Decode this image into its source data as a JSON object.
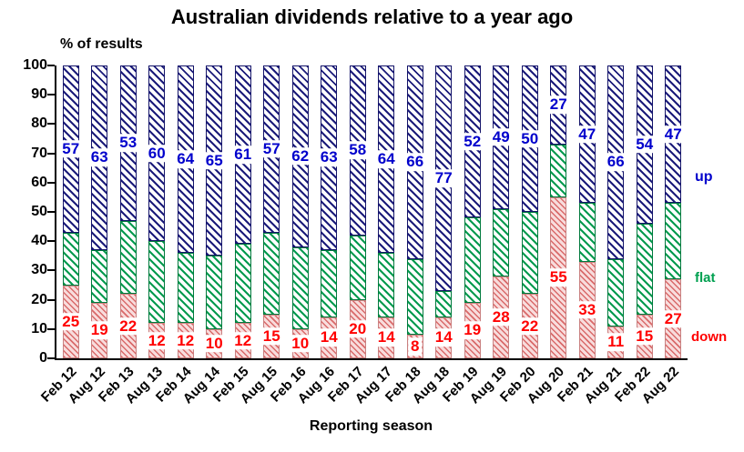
{
  "title": "Australian dividends relative to a year ago",
  "y_axis_label": "% of results",
  "x_axis_label": "Reporting season",
  "legend": {
    "up_label": "up",
    "flat_label": "flat",
    "down_label": "down"
  },
  "colors": {
    "up_text": "#0000cc",
    "flat_text": "#00a050",
    "down_text": "#ff0000",
    "up_hatch": "#1b1b7a",
    "flat_hatch": "#009a4e",
    "down_hatch": "#d96a6a",
    "axis": "#000000"
  },
  "chart_data": {
    "type": "bar",
    "stacked": true,
    "title": "Australian dividends relative to a year ago",
    "xlabel": "Reporting season",
    "ylabel": "% of results",
    "ylim": [
      0,
      100
    ],
    "yticks": [
      0,
      10,
      20,
      30,
      40,
      50,
      60,
      70,
      80,
      90,
      100
    ],
    "grid": false,
    "legend_position": "right",
    "categories": [
      "Feb 12",
      "Aug 12",
      "Feb 13",
      "Aug 13",
      "Feb 14",
      "Aug 14",
      "Feb 15",
      "Aug 15",
      "Feb 16",
      "Aug 16",
      "Feb 17",
      "Aug 17",
      "Feb 18",
      "Aug 18",
      "Feb 19",
      "Aug 19",
      "Feb 20",
      "Aug 20",
      "Feb 21",
      "Aug 21",
      "Feb 22",
      "Aug 22"
    ],
    "series": [
      {
        "name": "down",
        "values": [
          25,
          19,
          22,
          12,
          12,
          10,
          12,
          15,
          10,
          14,
          20,
          14,
          8,
          14,
          19,
          28,
          22,
          55,
          33,
          11,
          15,
          27
        ]
      },
      {
        "name": "flat",
        "values": [
          18,
          18,
          25,
          28,
          24,
          25,
          27,
          28,
          28,
          23,
          22,
          22,
          26,
          9,
          29,
          23,
          28,
          18,
          20,
          23,
          31,
          26
        ]
      },
      {
        "name": "up",
        "values": [
          57,
          63,
          53,
          60,
          64,
          65,
          61,
          57,
          62,
          63,
          58,
          64,
          66,
          77,
          52,
          49,
          50,
          27,
          47,
          66,
          54,
          47
        ]
      }
    ],
    "data_labels_shown_for": [
      "down",
      "up"
    ]
  }
}
